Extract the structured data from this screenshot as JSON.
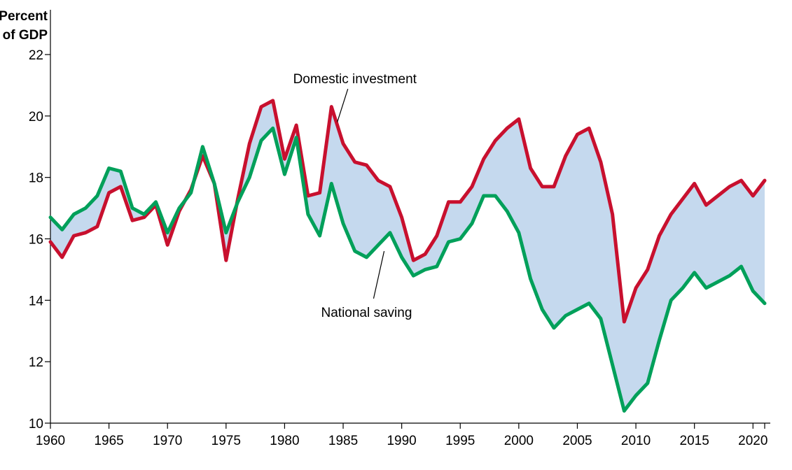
{
  "chart_data": {
    "type": "line",
    "title": "",
    "ylabel": [
      "Percent",
      "of GDP"
    ],
    "xlabel": "",
    "ylim": [
      10,
      22
    ],
    "xlim": [
      1960,
      2021
    ],
    "yticks": [
      10,
      12,
      14,
      16,
      18,
      20,
      22
    ],
    "xticks": [
      1960,
      1965,
      1970,
      1975,
      1980,
      1985,
      1990,
      1995,
      2000,
      2005,
      2010,
      2015,
      2020
    ],
    "x": [
      1960,
      1961,
      1962,
      1963,
      1964,
      1965,
      1966,
      1967,
      1968,
      1969,
      1970,
      1971,
      1972,
      1973,
      1974,
      1975,
      1976,
      1977,
      1978,
      1979,
      1980,
      1981,
      1982,
      1983,
      1984,
      1985,
      1986,
      1987,
      1988,
      1989,
      1990,
      1991,
      1992,
      1993,
      1994,
      1995,
      1996,
      1997,
      1998,
      1999,
      2000,
      2001,
      2002,
      2003,
      2004,
      2005,
      2006,
      2007,
      2008,
      2009,
      2010,
      2011,
      2012,
      2013,
      2014,
      2015,
      2016,
      2017,
      2018,
      2019,
      2020,
      2021
    ],
    "series": [
      {
        "name": "Domestic investment",
        "color": "#c8102e",
        "values": [
          15.9,
          15.4,
          16.1,
          16.2,
          16.4,
          17.5,
          17.7,
          16.6,
          16.7,
          17.1,
          15.8,
          16.9,
          17.6,
          18.7,
          17.8,
          15.3,
          17.3,
          19.1,
          20.3,
          20.5,
          18.6,
          19.7,
          17.4,
          17.5,
          20.3,
          19.1,
          18.5,
          18.4,
          17.9,
          17.7,
          16.7,
          15.3,
          15.5,
          16.1,
          17.2,
          17.2,
          17.7,
          18.6,
          19.2,
          19.6,
          19.9,
          18.3,
          17.7,
          17.7,
          18.7,
          19.4,
          19.6,
          18.5,
          16.8,
          13.3,
          14.4,
          15.0,
          16.1,
          16.8,
          17.3,
          17.8,
          17.1,
          17.4,
          17.7,
          17.9,
          17.4,
          17.9
        ]
      },
      {
        "name": "National saving",
        "color": "#00a05a",
        "values": [
          16.7,
          16.3,
          16.8,
          17.0,
          17.4,
          18.3,
          18.2,
          17.0,
          16.8,
          17.2,
          16.2,
          17.0,
          17.5,
          19.0,
          17.8,
          16.2,
          17.2,
          18.0,
          19.2,
          19.6,
          18.1,
          19.3,
          16.8,
          16.1,
          17.8,
          16.5,
          15.6,
          15.4,
          15.8,
          16.2,
          15.4,
          14.8,
          15.0,
          15.1,
          15.9,
          16.0,
          16.5,
          17.4,
          17.4,
          16.9,
          16.2,
          14.7,
          13.7,
          13.1,
          13.5,
          13.7,
          13.9,
          13.4,
          11.9,
          10.4,
          10.9,
          11.3,
          12.7,
          14.0,
          14.4,
          14.9,
          14.4,
          14.6,
          14.8,
          15.1,
          14.3,
          13.9
        ]
      }
    ],
    "fill_between_color": "#c5d9ee",
    "annotations": [
      {
        "text": "Domestic investment",
        "x": 1986,
        "y": 21.2,
        "points_to": [
          1984.5,
          19.8
        ]
      },
      {
        "text": "National saving",
        "x": 1987,
        "y": 13.6,
        "points_to": [
          1988.5,
          15.6
        ]
      }
    ],
    "grid": false,
    "legend": "none"
  }
}
